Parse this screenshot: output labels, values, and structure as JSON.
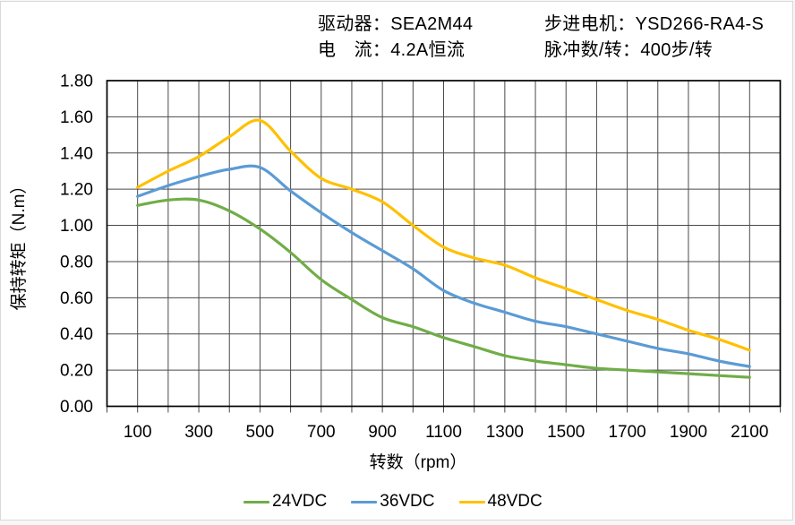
{
  "header": {
    "driver_label": "驱动器：SEA2M44",
    "current_label": "电　流：4.2A恒流",
    "motor_label": "步进电机：YSD266-RA4-S",
    "pulses_label": "脉冲数/转：400步/转"
  },
  "chart_data": {
    "type": "line",
    "title": "",
    "xlabel": "转数（rpm）",
    "ylabel": "保持转矩（N.m）",
    "x": [
      100,
      200,
      300,
      400,
      500,
      600,
      700,
      800,
      900,
      1000,
      1100,
      1200,
      1300,
      1400,
      1500,
      1600,
      1700,
      1800,
      1900,
      2000,
      2100
    ],
    "series": [
      {
        "name": "24VDC",
        "color": "#70AD47",
        "values": [
          1.11,
          1.14,
          1.14,
          1.08,
          0.98,
          0.85,
          0.7,
          0.59,
          0.49,
          0.44,
          0.38,
          0.33,
          0.28,
          0.25,
          0.23,
          0.21,
          0.2,
          0.19,
          0.18,
          0.17,
          0.16
        ]
      },
      {
        "name": "36VDC",
        "color": "#5B9BD5",
        "values": [
          1.16,
          1.22,
          1.27,
          1.31,
          1.32,
          1.19,
          1.07,
          0.96,
          0.86,
          0.76,
          0.64,
          0.57,
          0.52,
          0.47,
          0.44,
          0.4,
          0.36,
          0.32,
          0.29,
          0.25,
          0.22
        ]
      },
      {
        "name": "48VDC",
        "color": "#FFC000",
        "values": [
          1.21,
          1.3,
          1.38,
          1.49,
          1.58,
          1.41,
          1.26,
          1.2,
          1.13,
          1.0,
          0.88,
          0.82,
          0.78,
          0.71,
          0.65,
          0.59,
          0.53,
          0.48,
          0.42,
          0.37,
          0.31
        ]
      }
    ],
    "xlim": [
      0,
      2200
    ],
    "ylim": [
      0,
      1.8
    ],
    "x_grid_step": 100,
    "y_grid_step": 0.2,
    "x_tick_labels": [
      "100",
      "300",
      "500",
      "700",
      "900",
      "1100",
      "1300",
      "1500",
      "1700",
      "1900",
      "2100"
    ],
    "y_tick_labels": [
      "1.80",
      "1.60",
      "1.40",
      "1.20",
      "1.00",
      "0.80",
      "0.60",
      "0.40",
      "0.20",
      "0.00"
    ],
    "grid": true,
    "smooth": true,
    "legend_position": "bottom"
  },
  "style_colors": {
    "grid": "#4a4a4a",
    "plot_border": "#000000",
    "figure_border": "#d9d9d9",
    "text": "#000000"
  }
}
